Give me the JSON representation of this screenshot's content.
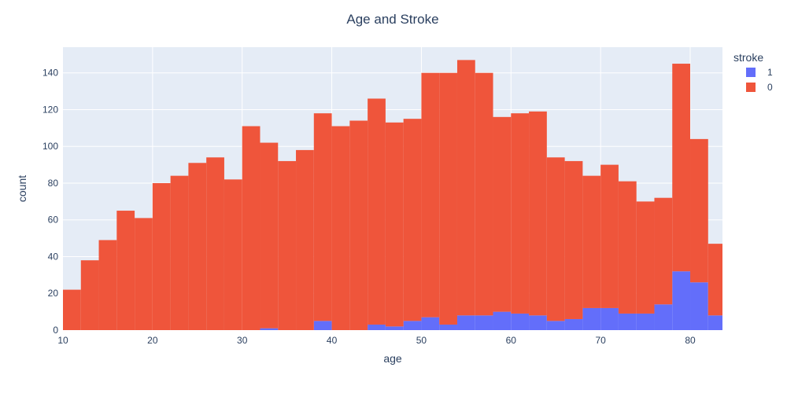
{
  "chart_data": {
    "type": "bar",
    "barmode": "stack",
    "title": "Age and Stroke",
    "xlabel": "age",
    "ylabel": "count",
    "xlim": [
      10,
      83.6
    ],
    "ylim": [
      0,
      154
    ],
    "x_ticks": [
      10,
      20,
      30,
      40,
      50,
      60,
      70,
      80
    ],
    "y_ticks": [
      0,
      20,
      40,
      60,
      80,
      100,
      120,
      140
    ],
    "grid": true,
    "legend": {
      "title": "stroke",
      "placement": "top-right",
      "items": [
        "1",
        "0"
      ]
    },
    "bin_start": 10,
    "bin_width": 2,
    "bin_count": 37,
    "series": [
      {
        "name": "1",
        "color": "#636efa",
        "values": [
          0,
          0,
          0,
          0,
          0,
          0,
          0,
          0,
          0,
          0,
          0,
          1,
          0,
          0,
          5,
          0,
          0,
          3,
          2,
          5,
          7,
          3,
          8,
          8,
          10,
          9,
          8,
          5,
          6,
          12,
          12,
          9,
          9,
          14,
          32,
          26,
          8
        ]
      },
      {
        "name": "0",
        "color": "#ef553b",
        "values": [
          22,
          38,
          49,
          65,
          61,
          80,
          84,
          91,
          94,
          82,
          111,
          101,
          92,
          98,
          113,
          111,
          114,
          123,
          111,
          110,
          133,
          137,
          139,
          132,
          106,
          109,
          111,
          89,
          86,
          72,
          78,
          72,
          61,
          58,
          113,
          78,
          39
        ]
      }
    ]
  }
}
